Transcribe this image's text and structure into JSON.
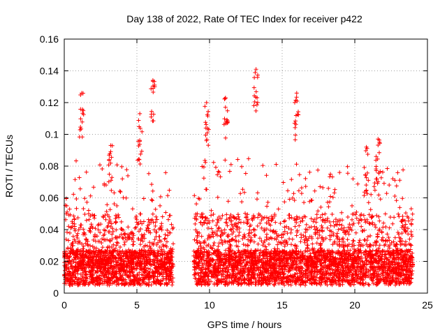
{
  "chart_data": {
    "type": "scatter",
    "title": "Day 138 of 2022, Rate Of TEC Index for receiver p422",
    "xlabel": "GPS time / hours",
    "ylabel": "ROTI / TECUs",
    "xlim": [
      0,
      25
    ],
    "ylim": [
      0,
      0.16
    ],
    "xticks": [
      0,
      5,
      10,
      15,
      20,
      25
    ],
    "yticks": [
      0,
      0.02,
      0.04,
      0.06,
      0.08,
      0.1,
      0.12,
      0.14,
      0.16
    ],
    "xtick_labels": [
      "0",
      "5",
      "10",
      "15",
      "20",
      "25"
    ],
    "ytick_labels": [
      "0",
      "0.02",
      "0.04",
      "0.06",
      "0.08",
      "0.1",
      "0.12",
      "0.14",
      "0.16"
    ],
    "grid": true,
    "marker": "+",
    "color": "#ff0000",
    "data_gap_hours": [
      7.5,
      8.9
    ],
    "highlights": [
      {
        "x": 1.2,
        "y": 0.126
      },
      {
        "x": 6.1,
        "y": 0.134
      },
      {
        "x": 13.2,
        "y": 0.141
      },
      {
        "x": 16.0,
        "y": 0.126
      },
      {
        "x": 9.8,
        "y": 0.12
      },
      {
        "x": 11.1,
        "y": 0.123
      },
      {
        "x": 5.2,
        "y": 0.113
      },
      {
        "x": 21.6,
        "y": 0.097
      },
      {
        "x": 3.2,
        "y": 0.093
      },
      {
        "x": 20.8,
        "y": 0.092
      }
    ]
  }
}
